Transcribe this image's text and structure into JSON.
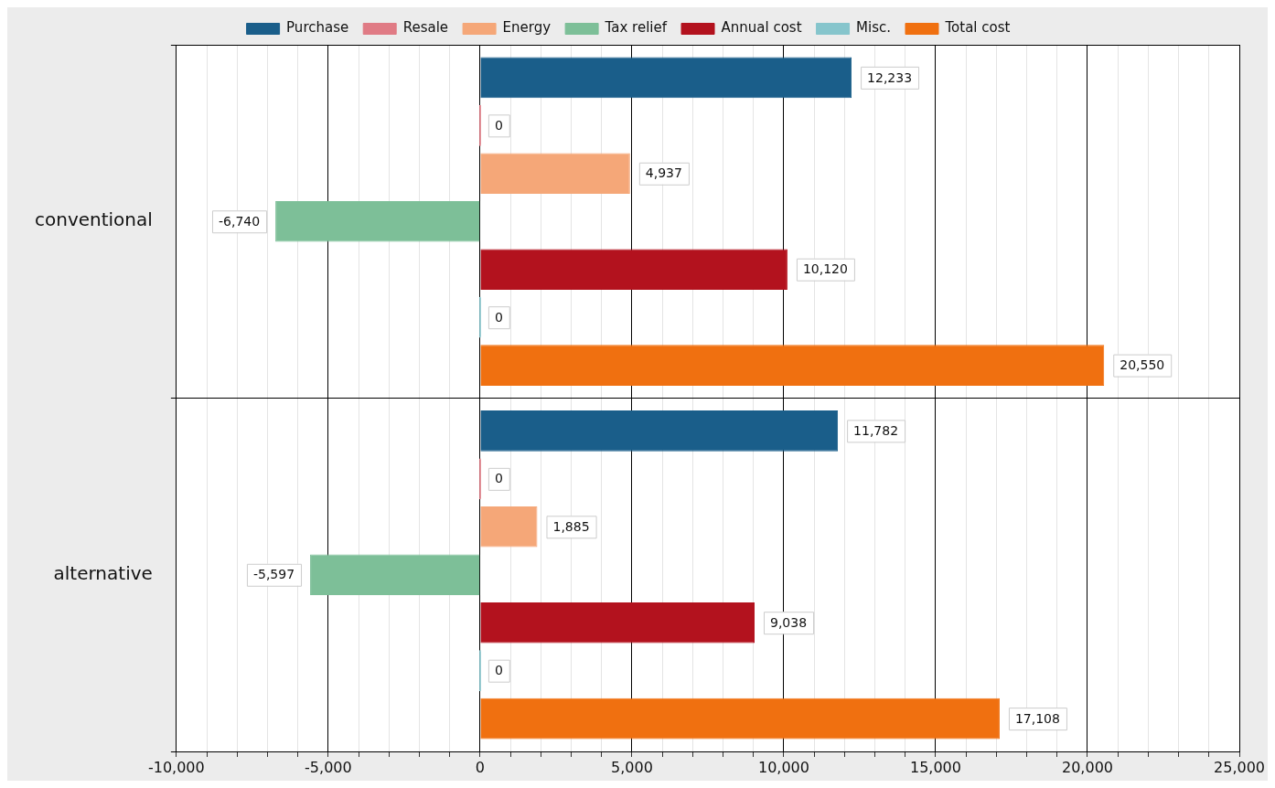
{
  "chart_data": {
    "type": "bar",
    "orientation": "horizontal",
    "categories": [
      "conventional",
      "alternative"
    ],
    "series": [
      {
        "name": "Purchase",
        "color": "#1a5e8a",
        "values": [
          12233,
          11782
        ],
        "value_labels": [
          "12,233",
          "11,782"
        ]
      },
      {
        "name": "Resale",
        "color": "#e07b85",
        "values": [
          0,
          0
        ],
        "value_labels": [
          "0",
          "0"
        ]
      },
      {
        "name": "Energy",
        "color": "#f5a778",
        "values": [
          4937,
          1885
        ],
        "value_labels": [
          "4,937",
          "1,885"
        ]
      },
      {
        "name": "Tax relief",
        "color": "#7dbf98",
        "values": [
          -6740,
          -5597
        ],
        "value_labels": [
          "-6,740",
          "-5,597"
        ]
      },
      {
        "name": "Annual cost",
        "color": "#b3121e",
        "values": [
          10120,
          9038
        ],
        "value_labels": [
          "10,120",
          "9,038"
        ]
      },
      {
        "name": "Misc.",
        "color": "#86c5cc",
        "values": [
          0,
          0
        ],
        "value_labels": [
          "0",
          "0"
        ]
      },
      {
        "name": "Total cost",
        "color": "#f07010",
        "values": [
          20550,
          17108
        ],
        "value_labels": [
          "20,550",
          "17,108"
        ]
      }
    ],
    "xlim": [
      -10000,
      25000
    ],
    "xticks": [
      {
        "value": -10000,
        "label": "-10,000"
      },
      {
        "value": -9000,
        "label": null
      },
      {
        "value": -8000,
        "label": null
      },
      {
        "value": -7000,
        "label": null
      },
      {
        "value": -6000,
        "label": null
      },
      {
        "value": -5000,
        "label": "-5,000"
      },
      {
        "value": -4000,
        "label": null
      },
      {
        "value": -3000,
        "label": null
      },
      {
        "value": -2000,
        "label": null
      },
      {
        "value": -1000,
        "label": null
      },
      0,
      {
        "value": 1000,
        "label": null
      },
      {
        "value": 2000,
        "label": null
      },
      {
        "value": 3000,
        "label": null
      },
      {
        "value": 4000,
        "label": null
      },
      {
        "value": 5000,
        "label": "5,000"
      },
      {
        "value": 6000,
        "label": null
      },
      {
        "value": 7000,
        "label": null
      },
      {
        "value": 8000,
        "label": null
      },
      {
        "value": 9000,
        "label": null
      },
      {
        "value": 10000,
        "label": "10,000"
      },
      {
        "value": 11000,
        "label": null
      },
      {
        "value": 12000,
        "label": null
      },
      {
        "value": 13000,
        "label": null
      },
      {
        "value": 14000,
        "label": null
      },
      {
        "value": 15000,
        "label": "15,000"
      },
      {
        "value": 16000,
        "label": null
      },
      {
        "value": 17000,
        "label": null
      },
      {
        "value": 18000,
        "label": null
      },
      {
        "value": 19000,
        "label": null
      },
      {
        "value": 20000,
        "label": "20,000"
      },
      {
        "value": 21000,
        "label": null
      },
      {
        "value": 22000,
        "label": null
      },
      {
        "value": 23000,
        "label": null
      },
      {
        "value": 24000,
        "label": null
      },
      {
        "value": 25000,
        "label": "25,000"
      }
    ],
    "grid": true,
    "legend": "top"
  }
}
